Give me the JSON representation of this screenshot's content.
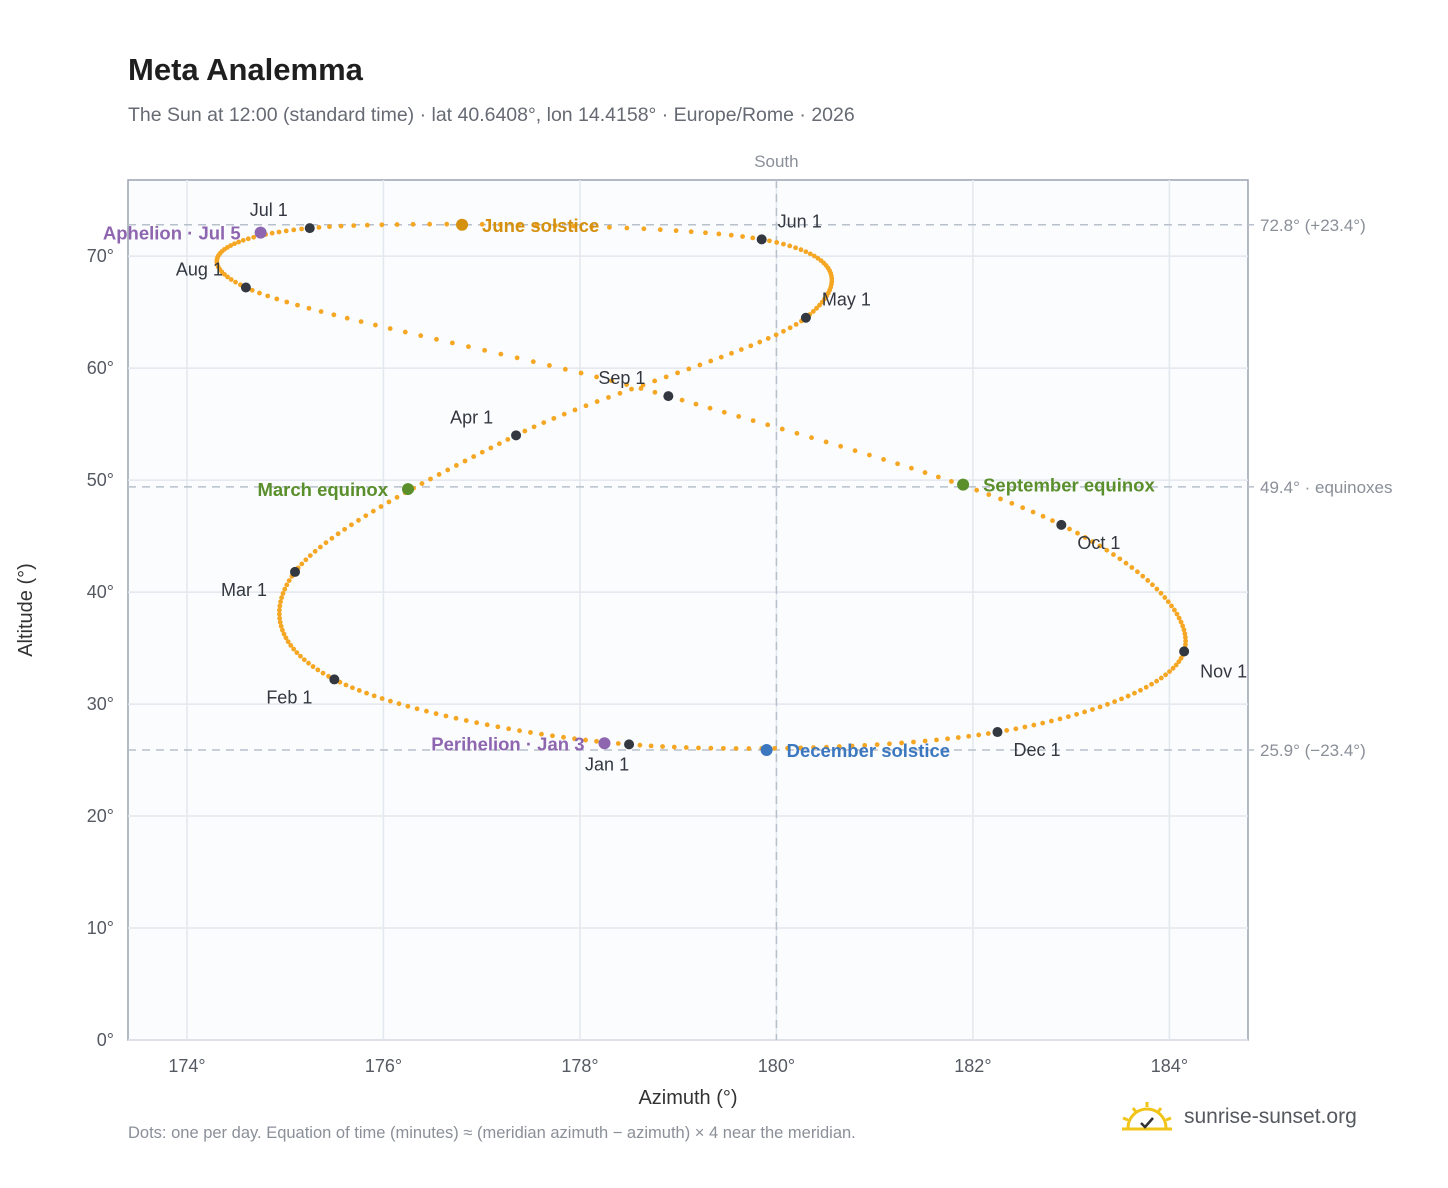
{
  "header": {
    "title": "Meta Analemma",
    "subtitle": "The Sun at 12:00 (standard time) · lat 40.6408°, lon 14.4158° · Europe/Rome · 2026"
  },
  "footnote": "Dots: one per day. Equation of time (minutes) ≈ (meridian azimuth − azimuth) × 4 near the meridian.",
  "brand": {
    "name": "sunrise-sunset.org",
    "icon": "sun-logo-icon"
  },
  "chart_data": {
    "type": "scatter",
    "xlabel": "Azimuth (°)",
    "ylabel": "Altitude (°)",
    "xlim": [
      173.4,
      184.8
    ],
    "ylim": [
      0,
      76.8
    ],
    "x_ticks": [
      174,
      176,
      178,
      180,
      182,
      184
    ],
    "y_ticks": [
      0,
      10,
      20,
      30,
      40,
      50,
      60,
      70
    ],
    "tick_suffix": "°",
    "grid": true,
    "meridian": {
      "azimuth": 180,
      "label": "South"
    },
    "reference_lines": [
      {
        "altitude": 72.8,
        "label": "72.8° (+23.4°)"
      },
      {
        "altitude": 49.4,
        "label": "49.4° · equinoxes"
      },
      {
        "altitude": 25.9,
        "label": "25.9° (−23.4°)"
      }
    ],
    "colors": {
      "path": "#f5a623",
      "month": "#333840",
      "june_solstice": "#d4900e",
      "december_solstice": "#3c78c0",
      "equinox": "#5a8f2c",
      "aphelion": "#8e66b0",
      "perihelion": "#8e66b0"
    },
    "path_keyframes": [
      {
        "day": 0,
        "az": 178.5,
        "alt": 26.4
      },
      {
        "day": 31,
        "az": 175.5,
        "alt": 32.2
      },
      {
        "day": 59,
        "az": 175.1,
        "alt": 41.8
      },
      {
        "day": 90,
        "az": 177.35,
        "alt": 54.0
      },
      {
        "day": 120,
        "az": 180.3,
        "alt": 64.5
      },
      {
        "day": 151,
        "az": 179.85,
        "alt": 71.5
      },
      {
        "day": 181,
        "az": 175.25,
        "alt": 72.5
      },
      {
        "day": 212,
        "az": 174.6,
        "alt": 67.2
      },
      {
        "day": 243,
        "az": 178.9,
        "alt": 57.5
      },
      {
        "day": 273,
        "az": 182.9,
        "alt": 46.0
      },
      {
        "day": 304,
        "az": 184.15,
        "alt": 34.7
      },
      {
        "day": 334,
        "az": 182.25,
        "alt": 27.5
      },
      {
        "day": 365,
        "az": 178.5,
        "alt": 26.4
      }
    ],
    "month_markers": [
      {
        "label": "Jan 1",
        "az": 178.5,
        "alt": 26.4
      },
      {
        "label": "Feb 1",
        "az": 175.5,
        "alt": 32.2
      },
      {
        "label": "Mar 1",
        "az": 175.1,
        "alt": 41.8
      },
      {
        "label": "Apr 1",
        "az": 177.35,
        "alt": 54.0
      },
      {
        "label": "May 1",
        "az": 180.3,
        "alt": 64.5
      },
      {
        "label": "Jun 1",
        "az": 179.85,
        "alt": 71.5
      },
      {
        "label": "Jul 1",
        "az": 175.25,
        "alt": 72.5
      },
      {
        "label": "Aug 1",
        "az": 174.6,
        "alt": 67.2
      },
      {
        "label": "Sep 1",
        "az": 178.9,
        "alt": 57.5
      },
      {
        "label": "Oct 1",
        "az": 182.9,
        "alt": 46.0
      },
      {
        "label": "Nov 1",
        "az": 184.15,
        "alt": 34.7
      },
      {
        "label": "Dec 1",
        "az": 182.25,
        "alt": 27.5
      }
    ],
    "events": [
      {
        "label": "June solstice",
        "kind": "june_solstice",
        "az": 176.8,
        "alt": 72.8
      },
      {
        "label": "December solstice",
        "kind": "december_solstice",
        "az": 179.9,
        "alt": 25.9
      },
      {
        "label": "March equinox",
        "kind": "equinox",
        "az": 176.25,
        "alt": 49.2
      },
      {
        "label": "September equinox",
        "kind": "equinox",
        "az": 181.9,
        "alt": 49.6
      },
      {
        "label": "Aphelion · Jul 5",
        "kind": "aphelion",
        "az": 174.75,
        "alt": 72.1
      },
      {
        "label": "Perihelion · Jan 3",
        "kind": "perihelion",
        "az": 178.25,
        "alt": 26.5
      }
    ]
  }
}
